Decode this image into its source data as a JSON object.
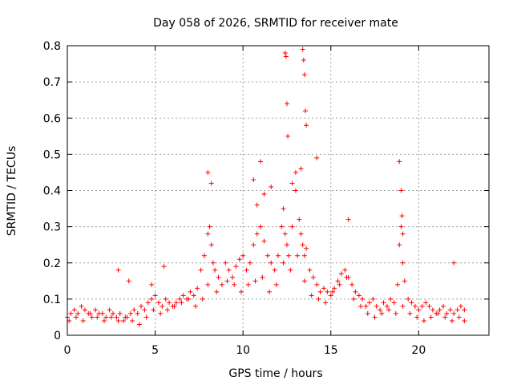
{
  "chart_data": {
    "type": "scatter",
    "title": "Day 058 of 2026, SRMTID for receiver mate",
    "xlabel": "GPS time / hours",
    "ylabel": "SRMTID / TECUs",
    "xlim": [
      0,
      24
    ],
    "ylim": [
      0,
      0.8
    ],
    "xticks": [
      0,
      5,
      10,
      15,
      20
    ],
    "xtick_labels": [
      "0",
      "5",
      "10",
      "15",
      "20"
    ],
    "yticks": [
      0,
      0.1,
      0.2,
      0.3,
      0.4,
      0.5,
      0.6,
      0.7,
      0.8
    ],
    "ytick_labels": [
      "0",
      "0.1",
      "0.2",
      "0.3",
      "0.4",
      "0.5",
      "0.6",
      "0.7",
      "0.8"
    ],
    "grid": true,
    "marker": "+",
    "series": [
      {
        "name": "SRMTID",
        "color": "#ff0000",
        "x": [
          0.0,
          0.2,
          0.4,
          0.6,
          0.8,
          1.0,
          1.2,
          1.4,
          1.6,
          1.8,
          2.0,
          2.2,
          2.4,
          2.6,
          2.8,
          3.0,
          3.2,
          3.4,
          3.6,
          3.8,
          4.0,
          4.2,
          4.4,
          4.6,
          4.8,
          5.0,
          5.2,
          5.4,
          5.6,
          5.8,
          6.0,
          6.2,
          6.4,
          6.6,
          6.8,
          7.0,
          7.2,
          7.4,
          7.6,
          7.8,
          8.0,
          8.1,
          8.2,
          8.3,
          8.4,
          8.6,
          8.8,
          9.0,
          9.2,
          9.4,
          9.6,
          9.8,
          10.0,
          10.2,
          10.4,
          10.6,
          10.8,
          11.0,
          11.2,
          11.4,
          11.6,
          11.8,
          12.0,
          12.2,
          12.3,
          12.4,
          12.5,
          12.6,
          12.8,
          13.0,
          13.2,
          13.3,
          13.4,
          13.5,
          13.6,
          13.8,
          14.0,
          14.2,
          14.4,
          14.6,
          14.8,
          15.0,
          15.2,
          15.4,
          15.6,
          15.8,
          16.0,
          16.2,
          16.4,
          16.6,
          16.8,
          17.0,
          17.2,
          17.4,
          17.6,
          17.8,
          18.0,
          18.2,
          18.4,
          18.6,
          18.8,
          18.9,
          19.0,
          19.1,
          19.2,
          19.4,
          19.6,
          19.8,
          20.0,
          20.2,
          20.4,
          20.6,
          20.8,
          21.0,
          21.2,
          21.4,
          21.6,
          21.8,
          22.0,
          22.2,
          22.4,
          22.6,
          0.1,
          0.5,
          0.9,
          1.3,
          1.7,
          2.1,
          2.5,
          2.9,
          3.3,
          3.7,
          4.1,
          4.5,
          4.9,
          5.3,
          5.7,
          6.1,
          6.5,
          6.9,
          7.3,
          7.7,
          8.0,
          8.5,
          9.1,
          9.5,
          9.9,
          10.3,
          10.7,
          11.1,
          11.5,
          11.9,
          12.3,
          12.7,
          13.1,
          13.5,
          13.9,
          14.3,
          14.7,
          15.1,
          15.5,
          15.9,
          16.3,
          16.7,
          17.1,
          17.5,
          17.9,
          18.3,
          18.7,
          19.1,
          19.5,
          19.9,
          20.3,
          20.7,
          21.1,
          21.5,
          21.9,
          22.3,
          22.6,
          2.9,
          3.5,
          4.8,
          5.5,
          8.0,
          8.2,
          10.6,
          11.0,
          11.6,
          12.4,
          12.45,
          12.5,
          12.55,
          13.3,
          13.4,
          13.45,
          13.5,
          13.55,
          13.6,
          14.2,
          16.0,
          18.9,
          19.0,
          19.05,
          19.1,
          22.0,
          12.8,
          13.0,
          11.2,
          10.8
        ],
        "y": [
          0.05,
          0.06,
          0.07,
          0.06,
          0.08,
          0.07,
          0.06,
          0.05,
          0.07,
          0.06,
          0.06,
          0.05,
          0.07,
          0.06,
          0.05,
          0.06,
          0.04,
          0.05,
          0.06,
          0.07,
          0.06,
          0.08,
          0.07,
          0.09,
          0.1,
          0.11,
          0.09,
          0.08,
          0.1,
          0.09,
          0.08,
          0.09,
          0.1,
          0.11,
          0.1,
          0.12,
          0.11,
          0.13,
          0.18,
          0.22,
          0.28,
          0.3,
          0.25,
          0.2,
          0.18,
          0.16,
          0.14,
          0.2,
          0.18,
          0.16,
          0.19,
          0.21,
          0.22,
          0.18,
          0.2,
          0.25,
          0.28,
          0.3,
          0.26,
          0.22,
          0.2,
          0.18,
          0.22,
          0.3,
          0.35,
          0.28,
          0.25,
          0.22,
          0.3,
          0.4,
          0.32,
          0.28,
          0.25,
          0.22,
          0.24,
          0.18,
          0.16,
          0.14,
          0.12,
          0.13,
          0.12,
          0.11,
          0.13,
          0.15,
          0.17,
          0.18,
          0.16,
          0.14,
          0.12,
          0.11,
          0.1,
          0.08,
          0.09,
          0.1,
          0.08,
          0.07,
          0.09,
          0.08,
          0.1,
          0.09,
          0.14,
          0.25,
          0.3,
          0.2,
          0.15,
          0.1,
          0.09,
          0.08,
          0.07,
          0.08,
          0.09,
          0.08,
          0.07,
          0.06,
          0.07,
          0.08,
          0.06,
          0.07,
          0.06,
          0.07,
          0.08,
          0.07,
          0.04,
          0.05,
          0.04,
          0.06,
          0.05,
          0.04,
          0.05,
          0.04,
          0.05,
          0.04,
          0.03,
          0.05,
          0.07,
          0.06,
          0.07,
          0.08,
          0.09,
          0.1,
          0.08,
          0.1,
          0.14,
          0.12,
          0.15,
          0.14,
          0.12,
          0.14,
          0.15,
          0.16,
          0.12,
          0.14,
          0.2,
          0.18,
          0.22,
          0.15,
          0.11,
          0.1,
          0.09,
          0.12,
          0.14,
          0.16,
          0.1,
          0.08,
          0.06,
          0.05,
          0.06,
          0.07,
          0.06,
          0.08,
          0.06,
          0.05,
          0.04,
          0.05,
          0.06,
          0.05,
          0.04,
          0.05,
          0.04,
          0.18,
          0.15,
          0.14,
          0.19,
          0.45,
          0.42,
          0.43,
          0.48,
          0.41,
          0.78,
          0.77,
          0.64,
          0.55,
          0.46,
          0.79,
          0.76,
          0.72,
          0.62,
          0.58,
          0.49,
          0.32,
          0.48,
          0.4,
          0.33,
          0.28,
          0.2,
          0.42,
          0.45,
          0.39,
          0.36
        ]
      }
    ]
  }
}
